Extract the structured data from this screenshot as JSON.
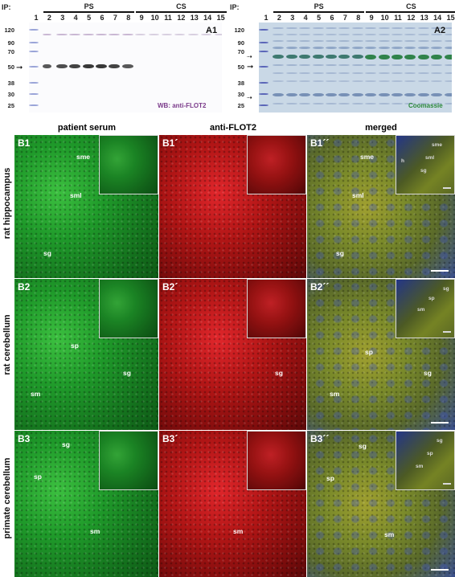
{
  "figure": {
    "ip_label": "IP:",
    "blot_a1": {
      "panel_label": "A1",
      "lanes": [
        "1",
        "2",
        "3",
        "4",
        "5",
        "6",
        "7",
        "8",
        "9",
        "10",
        "11",
        "12",
        "13",
        "14",
        "15"
      ],
      "groups": [
        {
          "label": "PS"
        },
        {
          "label": "CS"
        }
      ],
      "mw_markers": [
        "120",
        "90",
        "70",
        "50",
        "38",
        "30",
        "25"
      ],
      "stain_label": "WB: anti-FLOT2",
      "colors": {
        "band": "#2a2a2a",
        "stain_text": "#7a3a8a",
        "marker": "#7c8cd0"
      }
    },
    "blot_a2": {
      "panel_label": "A2",
      "lanes": [
        "1",
        "2",
        "3",
        "4",
        "5",
        "6",
        "7",
        "8",
        "9",
        "10",
        "11",
        "12",
        "13",
        "14",
        "15"
      ],
      "groups": [
        {
          "label": "PS"
        },
        {
          "label": "CS"
        }
      ],
      "mw_markers": [
        "120",
        "90",
        "70",
        "50",
        "38",
        "30",
        "25"
      ],
      "stain_label": "Coomassie",
      "colors": {
        "background": "#c9d8e6",
        "band": "#2f6f63",
        "stain_text": "#2d8a3a"
      }
    },
    "column_headers": [
      {
        "label": "patient serum",
        "color": "#27c43a"
      },
      {
        "label": "anti-FLOT2",
        "color": "#e0262b"
      },
      {
        "label": "merged",
        "color": "#222222"
      }
    ],
    "row_headers": [
      "rat hippocampus",
      "rat cerebellum",
      "primate cerebellum"
    ],
    "rows": [
      {
        "panels": [
          {
            "label": "B1",
            "regions": [
              "sme",
              "sml",
              "sg"
            ]
          },
          {
            "label": "B1´",
            "regions": []
          },
          {
            "label": "B1´´",
            "regions": [
              "sme",
              "sml",
              "sg"
            ],
            "inset_regions": [
              "sme",
              "sml",
              "h",
              "sg"
            ]
          }
        ]
      },
      {
        "panels": [
          {
            "label": "B2",
            "regions": [
              "sp",
              "sg",
              "sm"
            ]
          },
          {
            "label": "B2´",
            "regions": [
              "sg"
            ]
          },
          {
            "label": "B2´´",
            "regions": [
              "sp",
              "sg",
              "sm"
            ],
            "inset_regions": [
              "sg",
              "sp",
              "sm"
            ]
          }
        ]
      },
      {
        "panels": [
          {
            "label": "B3",
            "regions": [
              "sg",
              "sp",
              "sm"
            ]
          },
          {
            "label": "B3´",
            "regions": [
              "sm"
            ]
          },
          {
            "label": "B3´´",
            "regions": [
              "sg",
              "sp",
              "sm"
            ],
            "inset_regions": [
              "sg",
              "sp",
              "sm"
            ]
          }
        ]
      }
    ],
    "colors": {
      "green": "#1f9a2a",
      "red": "#b01515",
      "merged": "#7a8a2a",
      "nuclei": "#3a4fbf"
    }
  }
}
